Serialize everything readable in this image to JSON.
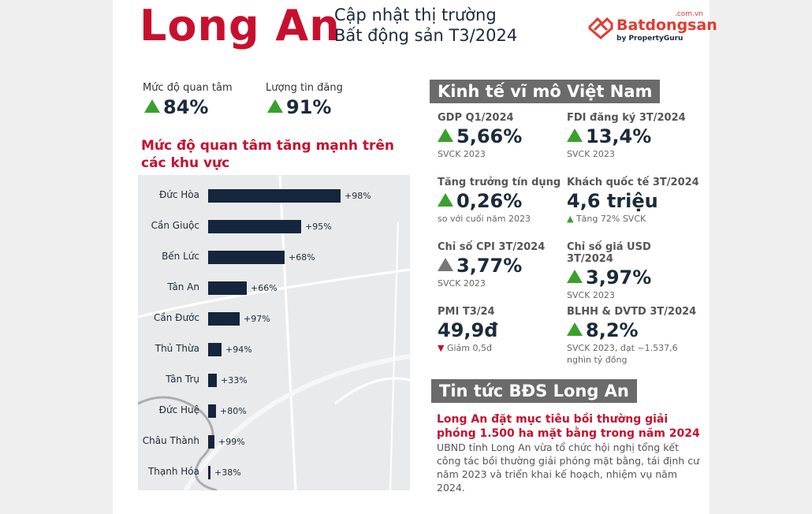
{
  "header": {
    "title": "Long An",
    "subtitle_line1": "Cập nhật thị trường",
    "subtitle_line2": "Bất động sản T3/2024"
  },
  "logo": {
    "brand": "Batdongsan",
    "domain": ".com.vn",
    "by": "by PropertyGuru",
    "color": "#e03c31"
  },
  "top_stats": [
    {
      "label": "Mức độ quan tâm",
      "value": "84%",
      "trend": "up"
    },
    {
      "label": "Lượng tin đăng",
      "value": "91%",
      "trend": "up"
    }
  ],
  "chart_section": {
    "title_line1": "Mức độ quan tâm tăng mạnh trên",
    "title_line2": "các khu vực"
  },
  "chart_data": {
    "type": "bar",
    "orientation": "horizontal",
    "categories": [
      "Đức Hòa",
      "Cần Giuộc",
      "Bến Lức",
      "Tân An",
      "Cần Đước",
      "Thủ Thừa",
      "Tân Trụ",
      "Đức Huệ",
      "Châu Thành",
      "Thạnh Hóa"
    ],
    "data_labels": [
      "+98%",
      "+95%",
      "+68%",
      "+66%",
      "+97%",
      "+94%",
      "+33%",
      "+80%",
      "+99%",
      "+38%"
    ],
    "relative_bar_level": [
      1.0,
      0.7,
      0.58,
      0.29,
      0.24,
      0.1,
      0.065,
      0.06,
      0.05,
      0.02
    ],
    "bar_color": "#14253d",
    "background": "map"
  },
  "macro": {
    "heading": "Kinh tế vĩ mô Việt Nam",
    "items": [
      {
        "label": "GDP Q1/2024",
        "value": "5,66%",
        "trend": "up",
        "note": "SVCK 2023"
      },
      {
        "label": "FDI đăng ký 3T/2024",
        "value": "13,4%",
        "trend": "up",
        "note": "SVCK 2023"
      },
      {
        "label": "Tăng trưởng tín dụng",
        "value": "0,26%",
        "trend": "up",
        "note": "so với cuối năm 2023"
      },
      {
        "label": "Khách quốc tế 3T/2024",
        "value": "4,6 triệu",
        "trend": "none",
        "note": "▲ Tăng 72% SVCK"
      },
      {
        "label": "Chỉ số CPI 3T/2024",
        "value": "3,77%",
        "trend": "up-gray",
        "note": "SVCK 2023"
      },
      {
        "label": "Chỉ số giá USD 3T/2024",
        "value": "3,97%",
        "trend": "up",
        "note": "SVCK 2023"
      },
      {
        "label": "PMI T3/24",
        "value": "49,9đ",
        "trend": "none",
        "note": "▼ Giảm 0,5đ"
      },
      {
        "label": "BLHH & DVTD 3T/2024",
        "value": "8,2%",
        "trend": "up",
        "note": "SVCK 2023, đạt ~1.537,6 nghìn tỷ đồng"
      }
    ]
  },
  "news": {
    "heading": "Tin tức BĐS Long An",
    "title": "Long An đặt mục tiêu bồi thường giải phóng 1.500 ha mặt bằng trong năm 2024",
    "body": "UBND tỉnh Long An vừa tổ chức hội nghị tổng kết công tác bồi thường giải phóng mặt bằng, tái định cư năm 2023 và triển khai kế hoạch, nhiệm vụ năm 2024."
  },
  "colors": {
    "accent_red": "#c8102e",
    "navy": "#1c2a3a",
    "up_green": "#3aa02c",
    "heading_gray": "#6b6b6b"
  }
}
